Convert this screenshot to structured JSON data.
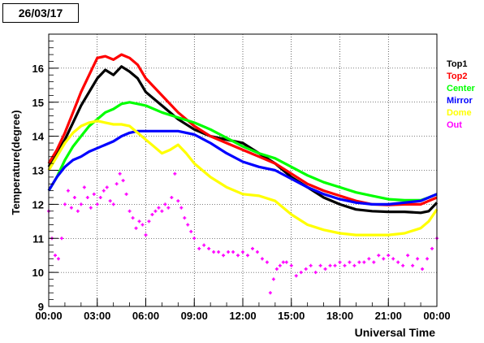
{
  "date_label": "26/03/17",
  "chart_data": {
    "type": "line",
    "xlabel": "Universal Time",
    "ylabel": "Temperature(degree)",
    "xlim": [
      0,
      24
    ],
    "ylim": [
      9,
      17
    ],
    "grid": true,
    "legend_placement": "right",
    "x_ticks": [
      {
        "value": 0,
        "label": "00:00"
      },
      {
        "value": 3,
        "label": "03:00"
      },
      {
        "value": 6,
        "label": "06:00"
      },
      {
        "value": 9,
        "label": "09:00"
      },
      {
        "value": 12,
        "label": "12:00"
      },
      {
        "value": 15,
        "label": "15:00"
      },
      {
        "value": 18,
        "label": "18:00"
      },
      {
        "value": 21,
        "label": "21:00"
      },
      {
        "value": 24,
        "label": "00:00"
      }
    ],
    "y_ticks": [
      {
        "value": 9,
        "label": "9"
      },
      {
        "value": 10,
        "label": "10"
      },
      {
        "value": 11,
        "label": "11"
      },
      {
        "value": 12,
        "label": "12"
      },
      {
        "value": 13,
        "label": "13"
      },
      {
        "value": 14,
        "label": "14"
      },
      {
        "value": 15,
        "label": "15"
      },
      {
        "value": 16,
        "label": "16"
      }
    ],
    "series": [
      {
        "name": "Top1",
        "color": "#000000",
        "style": "line",
        "x": [
          0,
          0.5,
          1,
          1.5,
          2,
          2.5,
          3,
          3.5,
          4,
          4.5,
          5,
          5.5,
          6,
          7,
          8,
          9,
          10,
          11,
          12,
          13,
          14,
          15,
          16,
          17,
          18,
          19,
          20,
          21,
          22,
          23,
          23.5,
          24
        ],
        "y": [
          13.1,
          13.5,
          13.9,
          14.4,
          14.9,
          15.3,
          15.7,
          15.95,
          15.8,
          16.05,
          15.9,
          15.7,
          15.3,
          14.9,
          14.5,
          14.2,
          14.0,
          13.9,
          13.8,
          13.5,
          13.2,
          12.8,
          12.5,
          12.2,
          12.0,
          11.85,
          11.8,
          11.78,
          11.78,
          11.75,
          11.8,
          12.05
        ]
      },
      {
        "name": "Top2",
        "color": "#ff0000",
        "style": "line",
        "x": [
          0,
          0.5,
          1,
          1.5,
          2,
          2.5,
          3,
          3.5,
          4,
          4.5,
          5,
          5.5,
          6,
          7,
          8,
          9,
          10,
          11,
          12,
          13,
          14,
          15,
          16,
          17,
          18,
          19,
          20,
          21,
          22,
          23,
          23.5,
          24
        ],
        "y": [
          13.2,
          13.6,
          14.1,
          14.7,
          15.3,
          15.8,
          16.3,
          16.35,
          16.25,
          16.4,
          16.3,
          16.1,
          15.7,
          15.2,
          14.7,
          14.3,
          14.0,
          13.8,
          13.6,
          13.4,
          13.2,
          12.9,
          12.6,
          12.4,
          12.25,
          12.1,
          12.0,
          11.98,
          12.0,
          12.0,
          12.1,
          12.2
        ]
      },
      {
        "name": "Center",
        "color": "#00ff00",
        "style": "line",
        "x": [
          0,
          0.5,
          1,
          1.5,
          2,
          2.5,
          3,
          3.5,
          4,
          4.5,
          5,
          5.5,
          6,
          7,
          8,
          9,
          10,
          11,
          12,
          13,
          14,
          15,
          16,
          17,
          18,
          19,
          20,
          21,
          22,
          23,
          23.5,
          24
        ],
        "y": [
          12.4,
          12.8,
          13.3,
          13.7,
          14.0,
          14.3,
          14.5,
          14.7,
          14.8,
          14.95,
          15.0,
          14.95,
          14.9,
          14.7,
          14.55,
          14.4,
          14.2,
          13.95,
          13.7,
          13.5,
          13.35,
          13.1,
          12.85,
          12.65,
          12.5,
          12.35,
          12.25,
          12.15,
          12.12,
          12.12,
          12.2,
          12.3
        ]
      },
      {
        "name": "Mirror",
        "color": "#0000ff",
        "style": "line",
        "x": [
          0,
          0.5,
          1,
          1.5,
          2,
          2.5,
          3,
          3.5,
          4,
          4.5,
          5,
          5.5,
          6,
          7,
          8,
          9,
          10,
          11,
          12,
          13,
          14,
          15,
          16,
          17,
          18,
          19,
          20,
          21,
          22,
          23,
          23.5,
          24
        ],
        "y": [
          12.4,
          12.8,
          13.1,
          13.3,
          13.4,
          13.55,
          13.65,
          13.75,
          13.85,
          14.0,
          14.1,
          14.15,
          14.15,
          14.15,
          14.15,
          14.05,
          13.8,
          13.5,
          13.25,
          13.1,
          13.0,
          12.75,
          12.5,
          12.3,
          12.15,
          12.05,
          12.0,
          12.0,
          12.05,
          12.1,
          12.2,
          12.3
        ]
      },
      {
        "name": "Dome",
        "color": "#ffff00",
        "style": "line",
        "x": [
          0,
          0.5,
          1,
          1.5,
          2,
          2.5,
          3,
          3.5,
          4,
          4.5,
          5,
          5.5,
          6,
          6.5,
          7,
          7.5,
          8,
          8.5,
          9,
          10,
          11,
          12,
          13,
          14,
          15,
          16,
          17,
          18,
          19,
          20,
          21,
          22,
          23,
          23.5,
          24
        ],
        "y": [
          13.0,
          13.4,
          13.8,
          14.1,
          14.3,
          14.4,
          14.45,
          14.4,
          14.35,
          14.35,
          14.3,
          14.1,
          13.9,
          13.7,
          13.5,
          13.6,
          13.75,
          13.5,
          13.2,
          12.8,
          12.5,
          12.3,
          12.25,
          12.1,
          11.7,
          11.4,
          11.25,
          11.15,
          11.1,
          11.1,
          11.1,
          11.15,
          11.3,
          11.5,
          11.85
        ]
      },
      {
        "name": "Out",
        "color": "#ff00ff",
        "style": "scatter",
        "x": [
          0,
          0.2,
          0.4,
          0.6,
          0.8,
          1.0,
          1.2,
          1.4,
          1.6,
          1.8,
          2.0,
          2.2,
          2.4,
          2.6,
          2.8,
          3.0,
          3.2,
          3.4,
          3.6,
          3.8,
          4.0,
          4.2,
          4.4,
          4.6,
          4.8,
          5.0,
          5.2,
          5.4,
          5.6,
          5.8,
          6.0,
          6.2,
          6.4,
          6.6,
          6.8,
          7.0,
          7.2,
          7.4,
          7.6,
          7.8,
          8.0,
          8.2,
          8.4,
          8.6,
          8.8,
          9.0,
          9.3,
          9.6,
          9.9,
          10.2,
          10.5,
          10.8,
          11.1,
          11.4,
          11.7,
          12.0,
          12.3,
          12.6,
          12.9,
          13.2,
          13.5,
          13.7,
          13.9,
          14.1,
          14.3,
          14.5,
          14.7,
          15.0,
          15.3,
          15.6,
          15.9,
          16.2,
          16.5,
          16.8,
          17.1,
          17.4,
          17.7,
          18.0,
          18.3,
          18.6,
          18.9,
          19.2,
          19.5,
          19.8,
          20.1,
          20.4,
          20.7,
          21.0,
          21.3,
          21.6,
          21.9,
          22.2,
          22.5,
          22.8,
          23.1,
          23.4,
          23.7,
          24.0
        ],
        "y": [
          11.8,
          11.0,
          10.5,
          10.4,
          11.0,
          12.0,
          12.4,
          11.9,
          12.2,
          11.8,
          12.0,
          12.5,
          12.2,
          11.9,
          12.3,
          12.0,
          12.2,
          12.4,
          12.5,
          12.1,
          12.0,
          12.6,
          12.9,
          12.7,
          12.3,
          11.8,
          11.6,
          11.3,
          11.5,
          11.4,
          11.1,
          11.5,
          11.7,
          11.8,
          11.9,
          11.8,
          12.0,
          11.9,
          12.2,
          12.9,
          12.1,
          11.9,
          11.6,
          11.4,
          11.2,
          11.0,
          10.7,
          10.8,
          10.7,
          10.6,
          10.6,
          10.5,
          10.6,
          10.6,
          10.5,
          10.6,
          10.5,
          10.7,
          10.6,
          10.4,
          10.3,
          9.4,
          9.8,
          10.1,
          10.2,
          10.3,
          10.3,
          10.2,
          9.9,
          10.0,
          10.1,
          10.2,
          10.0,
          10.2,
          10.1,
          10.2,
          10.2,
          10.3,
          10.2,
          10.3,
          10.2,
          10.3,
          10.3,
          10.4,
          10.3,
          10.5,
          10.4,
          10.5,
          10.4,
          10.3,
          10.2,
          10.5,
          10.2,
          10.4,
          10.1,
          10.4,
          10.7,
          11.0
        ]
      }
    ]
  }
}
